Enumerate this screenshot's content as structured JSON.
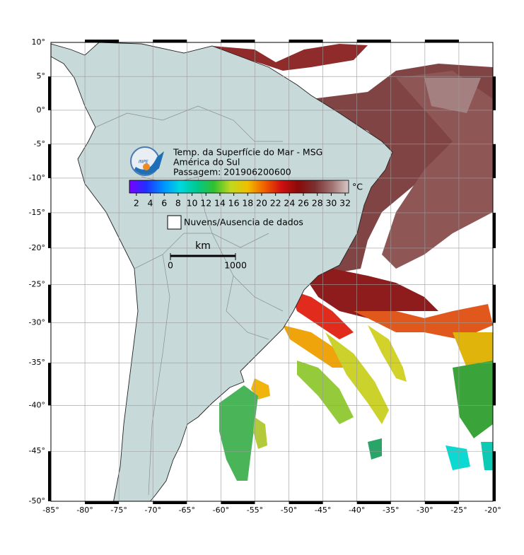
{
  "map": {
    "xlim": [
      -85,
      -20
    ],
    "ylim": [
      -50,
      10
    ],
    "lon_ticks": [
      {
        "value": -85,
        "label": "-85°"
      },
      {
        "value": -80,
        "label": "-80°"
      },
      {
        "value": -75,
        "label": "-75°"
      },
      {
        "value": -70,
        "label": "-70°"
      },
      {
        "value": -65,
        "label": "-65°"
      },
      {
        "value": -60,
        "label": "-60°"
      },
      {
        "value": -55,
        "label": "-55°"
      },
      {
        "value": -50,
        "label": "-50°"
      },
      {
        "value": -45,
        "label": "-45°"
      },
      {
        "value": -40,
        "label": "-40°"
      },
      {
        "value": -35,
        "label": "-35°"
      },
      {
        "value": -30,
        "label": "-30°"
      },
      {
        "value": -25,
        "label": "-25°"
      },
      {
        "value": -20,
        "label": "-20°"
      }
    ],
    "lat_ticks": [
      {
        "value": 10,
        "label": "10°"
      },
      {
        "value": 5,
        "label": "5°"
      },
      {
        "value": 0,
        "label": "0°"
      },
      {
        "value": -5,
        "label": "-5°"
      },
      {
        "value": -10,
        "label": "-10°"
      },
      {
        "value": -15,
        "label": "-15°"
      },
      {
        "value": -20,
        "label": "-20°"
      },
      {
        "value": -25,
        "label": "-25°"
      },
      {
        "value": -30,
        "label": "-30°"
      },
      {
        "value": -35,
        "label": "-35°"
      },
      {
        "value": -40,
        "label": "-40°"
      },
      {
        "value": -45,
        "label": "-45°"
      },
      {
        "value": -50,
        "label": "-50°"
      }
    ]
  },
  "legend": {
    "logo": "INPE",
    "title_lines": [
      "Temp. da Superfície do Mar - MSG",
      "América do Sul",
      "Passagem: 201906200600"
    ],
    "colorbar": {
      "lim": [
        1,
        32.5
      ],
      "ticks": [
        2,
        4,
        6,
        8,
        10,
        12,
        14,
        16,
        18,
        20,
        22,
        24,
        26,
        28,
        30,
        32
      ],
      "unit": "°C",
      "colors": [
        "#7a00ff",
        "#2030ff",
        "#0090ff",
        "#00d8e0",
        "#00c890",
        "#30c030",
        "#c0d820",
        "#f0c000",
        "#f06000",
        "#d01010",
        "#8a0a0a",
        "#7a3030",
        "#a07070",
        "#d8c8c8"
      ]
    },
    "cloud_label": "Nuvens/Ausencia de dados",
    "scale": {
      "unit": "km",
      "lim": [
        0,
        1000
      ],
      "ticks": [
        0,
        1000
      ]
    }
  }
}
